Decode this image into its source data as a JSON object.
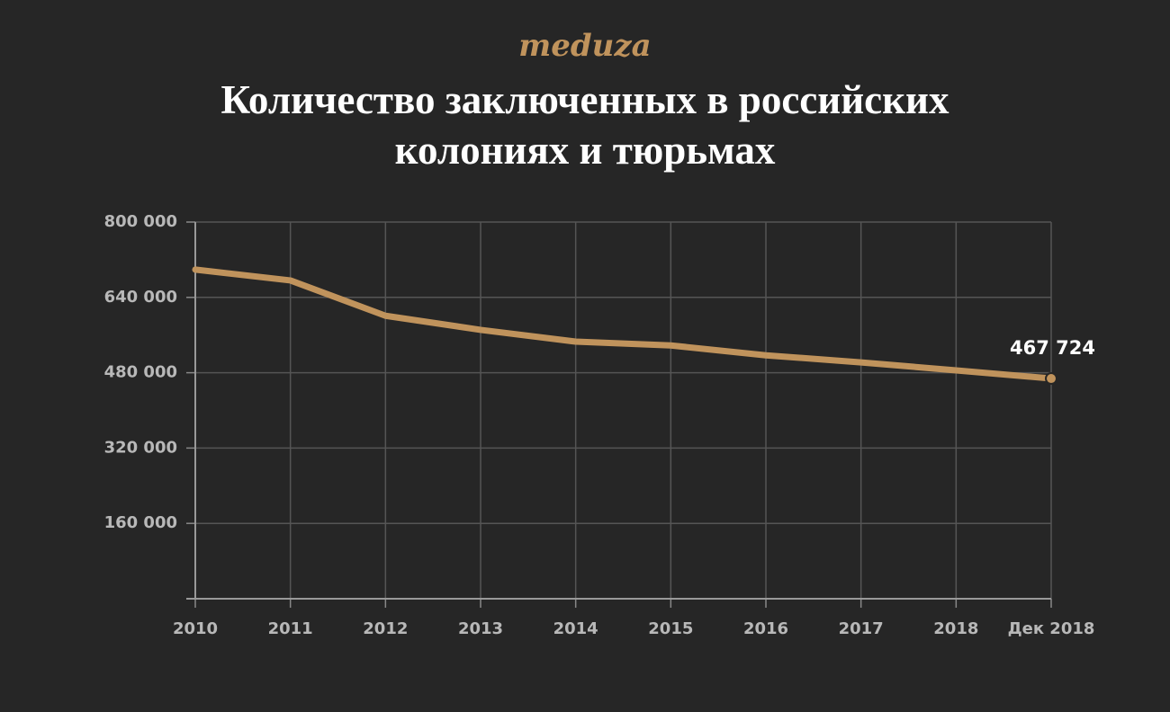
{
  "brand": "meduza",
  "chart_data": {
    "type": "line",
    "title": "Количество заключенных в российских колониях и тюрьмах",
    "categories": [
      "2010",
      "2011",
      "2012",
      "2013",
      "2014",
      "2015",
      "2016",
      "2017",
      "2018",
      "Дек 2018"
    ],
    "series": [
      {
        "color": "#c0935c",
        "values": [
          699000,
          676000,
          601000,
          571000,
          546000,
          538000,
          517000,
          502000,
          485000,
          467724
        ],
        "value_labels": [
          null,
          null,
          null,
          null,
          null,
          null,
          null,
          null,
          null,
          "467 724"
        ]
      }
    ],
    "ylim": [
      0,
      800000
    ],
    "yticks": [
      {
        "value": 160000,
        "label": "160 000"
      },
      {
        "value": 320000,
        "label": "320 000"
      },
      {
        "value": 480000,
        "label": "480 000"
      },
      {
        "value": 640000,
        "label": "640 000"
      },
      {
        "value": 800000,
        "label": "800 000"
      }
    ],
    "grid": true
  }
}
